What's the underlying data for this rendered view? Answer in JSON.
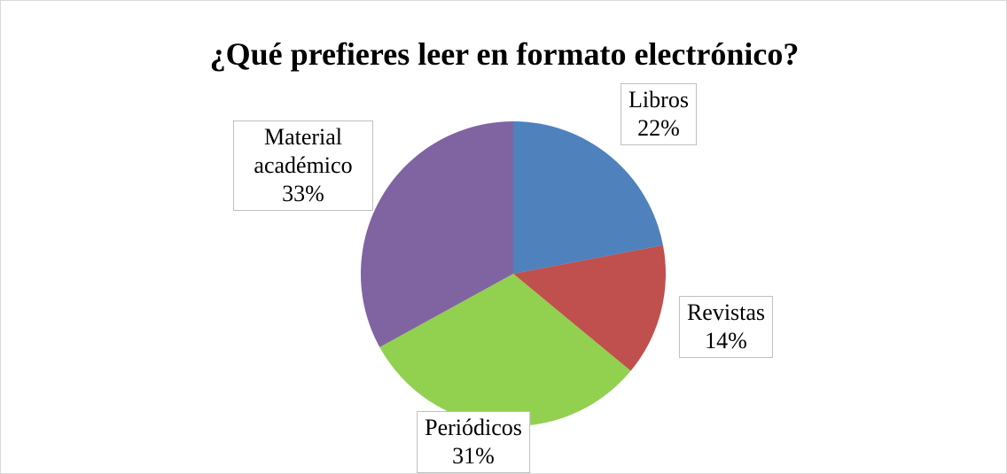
{
  "chart_data": {
    "type": "pie",
    "title": "¿Qué prefieres leer en formato electrónico?",
    "categories": [
      "Libros",
      "Revistas",
      "Periódicos",
      "Material académico"
    ],
    "values": [
      22,
      14,
      31,
      33
    ],
    "value_labels": [
      "22%",
      "14%",
      "31%",
      "33%"
    ],
    "colors": [
      "#4f81bd",
      "#c0504d",
      "#92d050",
      "#8064a2"
    ]
  }
}
